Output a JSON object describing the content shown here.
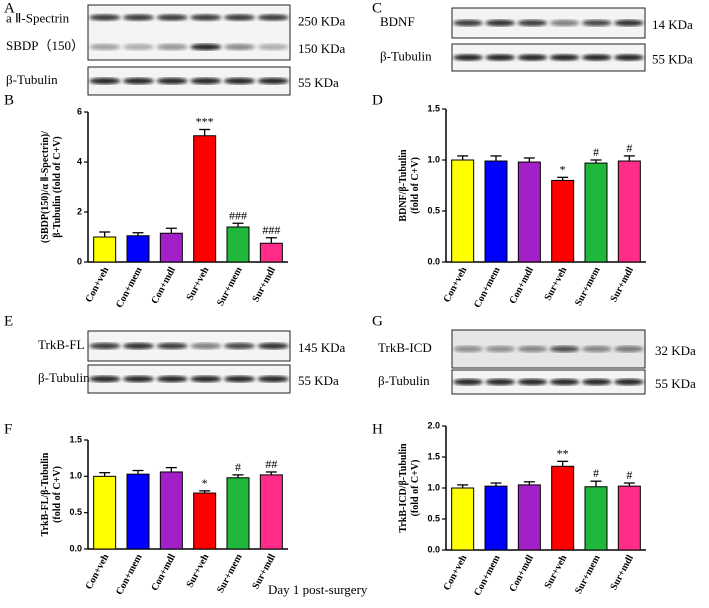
{
  "panel_letters": [
    "A",
    "B",
    "C",
    "D",
    "E",
    "F",
    "G",
    "H"
  ],
  "blots": [
    {
      "rows": [
        "a Ⅱ-Spectrin",
        "SBDP（150）",
        "β-Tubulin"
      ],
      "sizes": [
        "250 KDa",
        "150 KDa",
        "55 KDa"
      ]
    },
    {
      "rows": [
        "BDNF",
        "β-Tubulin"
      ],
      "sizes": [
        "14 KDa",
        "55 KDa"
      ]
    },
    {
      "rows": [
        "TrkB-FL",
        "β-Tubulin"
      ],
      "sizes": [
        "145 KDa",
        "55 KDa"
      ]
    },
    {
      "rows": [
        "TrkB-ICD",
        "β-Tubulin"
      ],
      "sizes": [
        "32 KDa",
        "55 KDa"
      ]
    }
  ],
  "caption": "Day 1 post-surgery",
  "chart_data": [
    {
      "type": "bar",
      "ylabel": [
        "(SBDP(150)/α Ⅱ-Spectrin)/",
        "β-Tubulin (fold of C+V)"
      ],
      "categories": [
        "Con+veh",
        "Con+mem",
        "Con+mdl",
        "Sur+veh",
        "Sur+mem",
        "Sur+mdl"
      ],
      "colors": [
        "#ffff00",
        "#0000ff",
        "#a31fc8",
        "#ff0000",
        "#1fb83c",
        "#ff2d87"
      ],
      "values": [
        1.0,
        1.05,
        1.15,
        5.05,
        1.4,
        0.75
      ],
      "errors": [
        0.2,
        0.12,
        0.2,
        0.25,
        0.15,
        0.22
      ],
      "annotations": [
        null,
        null,
        null,
        "***",
        "###",
        "###"
      ],
      "ylim": [
        0,
        6
      ],
      "yticks": [
        0,
        2,
        4,
        6
      ]
    },
    {
      "type": "bar",
      "ylabel": [
        "BDNF/β-Tubulin",
        "(fold of C+V)"
      ],
      "categories": [
        "Con+veh",
        "Con+mem",
        "Con+mdl",
        "Sur+veh",
        "Sur+mem",
        "Sur+mdl"
      ],
      "colors": [
        "#ffff00",
        "#0000ff",
        "#a31fc8",
        "#ff0000",
        "#1fb83c",
        "#ff2d87"
      ],
      "values": [
        1.0,
        0.99,
        0.98,
        0.8,
        0.97,
        0.99
      ],
      "errors": [
        0.04,
        0.05,
        0.04,
        0.03,
        0.03,
        0.05
      ],
      "annotations": [
        null,
        null,
        null,
        "*",
        "#",
        "#"
      ],
      "ylim": [
        0,
        1.5
      ],
      "yticks": [
        {
          "value": 0,
          "label": "0.0"
        },
        0.5,
        {
          "value": 1,
          "label": "1.0"
        },
        1.5
      ]
    },
    {
      "type": "bar",
      "ylabel": [
        "TrkB-FL/β-Tubulin",
        "(fold of C+V)"
      ],
      "categories": [
        "Con+veh",
        "Con+mem",
        "Con+mdl",
        "Sur+veh",
        "Sur+mem",
        "Sur+mdl"
      ],
      "colors": [
        "#ffff00",
        "#0000ff",
        "#a31fc8",
        "#ff0000",
        "#1fb83c",
        "#ff2d87"
      ],
      "values": [
        1.0,
        1.03,
        1.06,
        0.77,
        0.98,
        1.02
      ],
      "errors": [
        0.05,
        0.05,
        0.06,
        0.03,
        0.04,
        0.04
      ],
      "annotations": [
        null,
        null,
        null,
        "*",
        "#",
        "##"
      ],
      "ylim": [
        0,
        1.5
      ],
      "yticks": [
        {
          "value": 0,
          "label": "0.0"
        },
        0.5,
        {
          "value": 1,
          "label": "1.0"
        },
        1.5
      ]
    },
    {
      "type": "bar",
      "ylabel": [
        "TrkB-ICD/β-Tubulin",
        "(fold of C+V)"
      ],
      "categories": [
        "Con+veh",
        "Con+mem",
        "Con+mdl",
        "Sur+veh",
        "Sur+mem",
        "Sur+mdl"
      ],
      "colors": [
        "#ffff00",
        "#0000ff",
        "#a31fc8",
        "#ff0000",
        "#1fb83c",
        "#ff2d87"
      ],
      "values": [
        1.0,
        1.03,
        1.05,
        1.35,
        1.02,
        1.03
      ],
      "errors": [
        0.05,
        0.05,
        0.05,
        0.08,
        0.09,
        0.05
      ],
      "annotations": [
        null,
        null,
        null,
        "**",
        "#",
        "#"
      ],
      "ylim": [
        0,
        2
      ],
      "yticks": [
        {
          "value": 0,
          "label": "0.0"
        },
        0.5,
        {
          "value": 1,
          "label": "1.0"
        },
        1.5,
        {
          "value": 2,
          "label": "2.0"
        }
      ]
    }
  ]
}
